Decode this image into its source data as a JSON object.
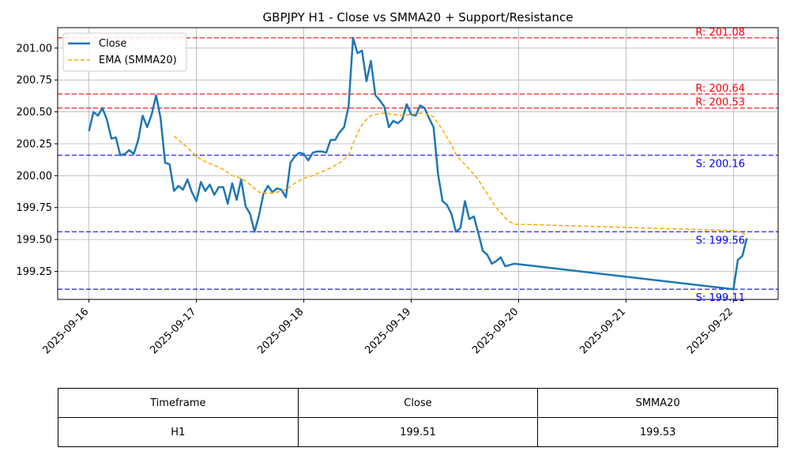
{
  "chart_data": {
    "type": "line",
    "title": "GBPJPY H1 - Close vs SMMA20 + Support/Resistance",
    "x_tick_labels": [
      "2025-09-16",
      "2025-09-17",
      "2025-09-18",
      "2025-09-19",
      "2025-09-20",
      "2025-09-21",
      "2025-09-22"
    ],
    "y_tick_labels": [
      "199.25",
      "199.50",
      "199.75",
      "200.00",
      "200.25",
      "200.50",
      "200.75",
      "201.00"
    ],
    "ylim": [
      199.03,
      201.16
    ],
    "xlim": [
      "2025-09-15 17:00",
      "2025-09-22 10:00"
    ],
    "grid": true,
    "legend_position": "top-left",
    "series": [
      {
        "name": "Close",
        "color": "#1f77b4",
        "style": "solid",
        "points": [
          [
            "2025-09-16 00:00",
            200.35
          ],
          [
            "2025-09-16 01:00",
            200.5
          ],
          [
            "2025-09-16 02:00",
            200.47
          ],
          [
            "2025-09-16 03:00",
            200.53
          ],
          [
            "2025-09-16 04:00",
            200.44
          ],
          [
            "2025-09-16 05:00",
            200.29
          ],
          [
            "2025-09-16 06:00",
            200.3
          ],
          [
            "2025-09-16 07:00",
            200.16
          ],
          [
            "2025-09-16 08:00",
            200.17
          ],
          [
            "2025-09-16 09:00",
            200.2
          ],
          [
            "2025-09-16 10:00",
            200.17
          ],
          [
            "2025-09-16 11:00",
            200.28
          ],
          [
            "2025-09-16 12:00",
            200.47
          ],
          [
            "2025-09-16 13:00",
            200.38
          ],
          [
            "2025-09-16 14:00",
            200.48
          ],
          [
            "2025-09-16 15:00",
            200.63
          ],
          [
            "2025-09-16 16:00",
            200.45
          ],
          [
            "2025-09-16 17:00",
            200.1
          ],
          [
            "2025-09-16 18:00",
            200.09
          ],
          [
            "2025-09-16 19:00",
            199.88
          ],
          [
            "2025-09-16 20:00",
            199.92
          ],
          [
            "2025-09-16 21:00",
            199.89
          ],
          [
            "2025-09-16 22:00",
            199.97
          ],
          [
            "2025-09-16 23:00",
            199.87
          ],
          [
            "2025-09-17 00:00",
            199.8
          ],
          [
            "2025-09-17 01:00",
            199.95
          ],
          [
            "2025-09-17 02:00",
            199.88
          ],
          [
            "2025-09-17 03:00",
            199.93
          ],
          [
            "2025-09-17 04:00",
            199.85
          ],
          [
            "2025-09-17 05:00",
            199.91
          ],
          [
            "2025-09-17 06:00",
            199.91
          ],
          [
            "2025-09-17 07:00",
            199.78
          ],
          [
            "2025-09-17 08:00",
            199.94
          ],
          [
            "2025-09-17 09:00",
            199.81
          ],
          [
            "2025-09-17 10:00",
            199.97
          ],
          [
            "2025-09-17 11:00",
            199.76
          ],
          [
            "2025-09-17 12:00",
            199.7
          ],
          [
            "2025-09-17 13:00",
            199.56
          ],
          [
            "2025-09-17 14:00",
            199.69
          ],
          [
            "2025-09-17 15:00",
            199.86
          ],
          [
            "2025-09-17 16:00",
            199.92
          ],
          [
            "2025-09-17 17:00",
            199.87
          ],
          [
            "2025-09-17 18:00",
            199.9
          ],
          [
            "2025-09-17 19:00",
            199.89
          ],
          [
            "2025-09-17 20:00",
            199.83
          ],
          [
            "2025-09-17 21:00",
            200.1
          ],
          [
            "2025-09-17 22:00",
            200.15
          ],
          [
            "2025-09-17 23:00",
            200.18
          ],
          [
            "2025-09-18 00:00",
            200.17
          ],
          [
            "2025-09-18 01:00",
            200.12
          ],
          [
            "2025-09-18 02:00",
            200.18
          ],
          [
            "2025-09-18 03:00",
            200.19
          ],
          [
            "2025-09-18 04:00",
            200.19
          ],
          [
            "2025-09-18 05:00",
            200.18
          ],
          [
            "2025-09-18 06:00",
            200.28
          ],
          [
            "2025-09-18 07:00",
            200.28
          ],
          [
            "2025-09-18 08:00",
            200.34
          ],
          [
            "2025-09-18 09:00",
            200.38
          ],
          [
            "2025-09-18 10:00",
            200.54
          ],
          [
            "2025-09-18 11:00",
            201.08
          ],
          [
            "2025-09-18 12:00",
            200.96
          ],
          [
            "2025-09-18 13:00",
            200.98
          ],
          [
            "2025-09-18 14:00",
            200.74
          ],
          [
            "2025-09-18 15:00",
            200.9
          ],
          [
            "2025-09-18 16:00",
            200.63
          ],
          [
            "2025-09-18 17:00",
            200.59
          ],
          [
            "2025-09-18 18:00",
            200.54
          ],
          [
            "2025-09-18 19:00",
            200.38
          ],
          [
            "2025-09-18 20:00",
            200.43
          ],
          [
            "2025-09-18 21:00",
            200.41
          ],
          [
            "2025-09-18 22:00",
            200.44
          ],
          [
            "2025-09-18 23:00",
            200.56
          ],
          [
            "2025-09-19 00:00",
            200.48
          ],
          [
            "2025-09-19 01:00",
            200.47
          ],
          [
            "2025-09-19 02:00",
            200.55
          ],
          [
            "2025-09-19 03:00",
            200.53
          ],
          [
            "2025-09-19 04:00",
            200.45
          ],
          [
            "2025-09-19 05:00",
            200.38
          ],
          [
            "2025-09-19 06:00",
            200.01
          ],
          [
            "2025-09-19 07:00",
            199.8
          ],
          [
            "2025-09-19 08:00",
            199.77
          ],
          [
            "2025-09-19 09:00",
            199.7
          ],
          [
            "2025-09-19 10:00",
            199.56
          ],
          [
            "2025-09-19 11:00",
            199.59
          ],
          [
            "2025-09-19 12:00",
            199.8
          ],
          [
            "2025-09-19 13:00",
            199.66
          ],
          [
            "2025-09-19 14:00",
            199.68
          ],
          [
            "2025-09-19 15:00",
            199.55
          ],
          [
            "2025-09-19 16:00",
            199.41
          ],
          [
            "2025-09-19 17:00",
            199.38
          ],
          [
            "2025-09-19 18:00",
            199.31
          ],
          [
            "2025-09-19 19:00",
            199.33
          ],
          [
            "2025-09-19 20:00",
            199.36
          ],
          [
            "2025-09-19 21:00",
            199.29
          ],
          [
            "2025-09-19 22:00",
            199.3
          ],
          [
            "2025-09-19 23:00",
            199.31
          ],
          [
            "2025-09-22 00:00",
            199.11
          ],
          [
            "2025-09-22 01:00",
            199.34
          ],
          [
            "2025-09-22 02:00",
            199.37
          ],
          [
            "2025-09-22 03:00",
            199.51
          ]
        ]
      },
      {
        "name": "EMA (SMMA20)",
        "color": "#ffa500",
        "style": "dashed",
        "points": [
          [
            "2025-09-16 19:00",
            200.31
          ],
          [
            "2025-09-16 20:00",
            200.28
          ],
          [
            "2025-09-16 21:00",
            200.25
          ],
          [
            "2025-09-16 22:00",
            200.22
          ],
          [
            "2025-09-16 23:00",
            200.19
          ],
          [
            "2025-09-17 00:00",
            200.15
          ],
          [
            "2025-09-17 02:00",
            200.11
          ],
          [
            "2025-09-17 04:00",
            200.08
          ],
          [
            "2025-09-17 06:00",
            200.05
          ],
          [
            "2025-09-17 08:00",
            200.0
          ],
          [
            "2025-09-17 10:00",
            199.98
          ],
          [
            "2025-09-17 12:00",
            199.93
          ],
          [
            "2025-09-17 14:00",
            199.87
          ],
          [
            "2025-09-17 16:00",
            199.86
          ],
          [
            "2025-09-17 18:00",
            199.87
          ],
          [
            "2025-09-17 20:00",
            199.89
          ],
          [
            "2025-09-17 22:00",
            199.94
          ],
          [
            "2025-09-18 00:00",
            199.98
          ],
          [
            "2025-09-18 02:00",
            200.0
          ],
          [
            "2025-09-18 04:00",
            200.03
          ],
          [
            "2025-09-18 06:00",
            200.06
          ],
          [
            "2025-09-18 08:00",
            200.1
          ],
          [
            "2025-09-18 10:00",
            200.16
          ],
          [
            "2025-09-18 11:00",
            200.25
          ],
          [
            "2025-09-18 12:00",
            200.33
          ],
          [
            "2025-09-18 13:00",
            200.4
          ],
          [
            "2025-09-18 14:00",
            200.44
          ],
          [
            "2025-09-18 15:00",
            200.47
          ],
          [
            "2025-09-18 16:00",
            200.48
          ],
          [
            "2025-09-18 18:00",
            200.49
          ],
          [
            "2025-09-18 20:00",
            200.48
          ],
          [
            "2025-09-18 22:00",
            200.47
          ],
          [
            "2025-09-19 00:00",
            200.48
          ],
          [
            "2025-09-19 02:00",
            200.49
          ],
          [
            "2025-09-19 04:00",
            200.48
          ],
          [
            "2025-09-19 05:00",
            200.46
          ],
          [
            "2025-09-19 06:00",
            200.41
          ],
          [
            "2025-09-19 07:00",
            200.36
          ],
          [
            "2025-09-19 08:00",
            200.3
          ],
          [
            "2025-09-19 09:00",
            200.24
          ],
          [
            "2025-09-19 10:00",
            200.17
          ],
          [
            "2025-09-19 11:00",
            200.12
          ],
          [
            "2025-09-19 12:00",
            200.09
          ],
          [
            "2025-09-19 13:00",
            200.05
          ],
          [
            "2025-09-19 14:00",
            200.01
          ],
          [
            "2025-09-19 15:00",
            199.97
          ],
          [
            "2025-09-19 16:00",
            199.91
          ],
          [
            "2025-09-19 17:00",
            199.86
          ],
          [
            "2025-09-19 18:00",
            199.8
          ],
          [
            "2025-09-19 19:00",
            199.75
          ],
          [
            "2025-09-19 20:00",
            199.71
          ],
          [
            "2025-09-19 21:00",
            199.67
          ],
          [
            "2025-09-19 22:00",
            199.64
          ],
          [
            "2025-09-19 23:00",
            199.62
          ],
          [
            "2025-09-22 00:00",
            199.57
          ],
          [
            "2025-09-22 01:00",
            199.56
          ],
          [
            "2025-09-22 02:00",
            199.55
          ],
          [
            "2025-09-22 03:00",
            199.53
          ]
        ]
      }
    ],
    "horizontal_lines": [
      {
        "kind": "resistance",
        "value": 201.08,
        "label": "R: 201.08",
        "color": "#ff0000"
      },
      {
        "kind": "resistance",
        "value": 200.64,
        "label": "R: 200.64",
        "color": "#ff0000"
      },
      {
        "kind": "resistance",
        "value": 200.53,
        "label": "R: 200.53",
        "color": "#ff0000"
      },
      {
        "kind": "support",
        "value": 200.16,
        "label": "S: 200.16",
        "color": "#0000ff"
      },
      {
        "kind": "support",
        "value": 199.56,
        "label": "S: 199.56",
        "color": "#0000ff"
      },
      {
        "kind": "support",
        "value": 199.11,
        "label": "S: 199.11",
        "color": "#0000ff"
      }
    ]
  },
  "table": {
    "headers": [
      "Timeframe",
      "Close",
      "SMMA20"
    ],
    "row": [
      "H1",
      "199.51",
      "199.53"
    ]
  }
}
